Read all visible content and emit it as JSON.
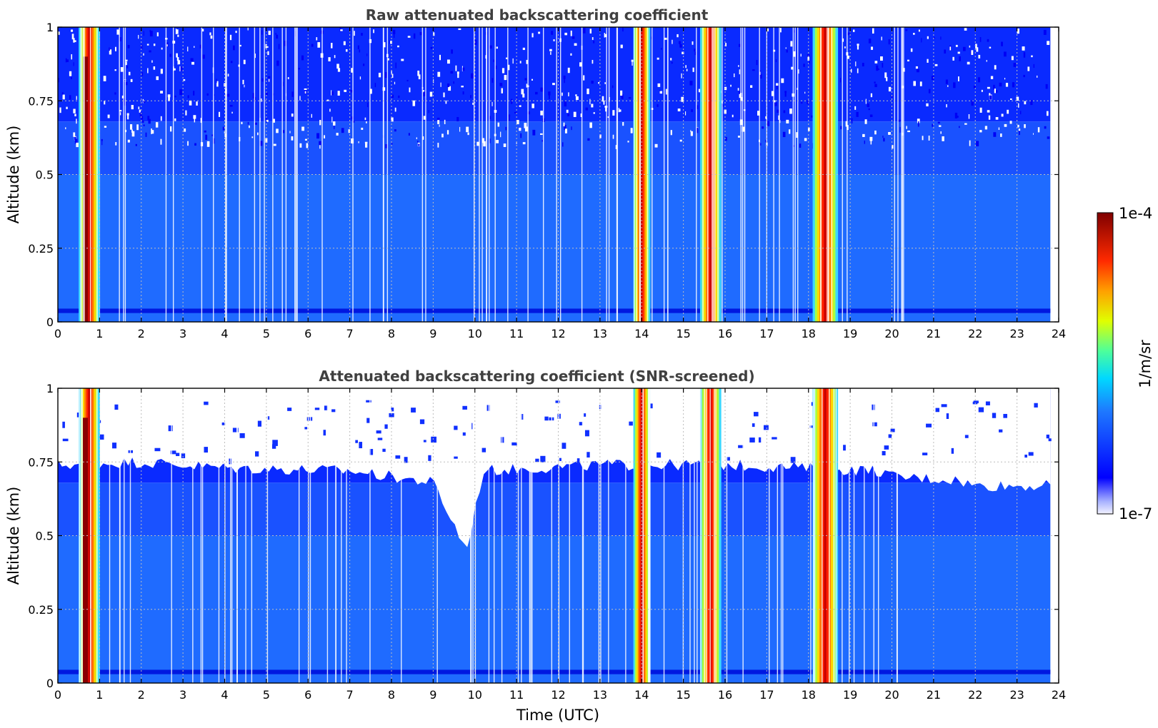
{
  "figure": {
    "colorbar": {
      "label": "1/m/sr",
      "max_label": "1e-4",
      "min_label": "1e-7",
      "colormap": "jet",
      "scale": "log"
    },
    "xlabel": "Time (UTC)"
  },
  "chart_data": [
    {
      "type": "heatmap",
      "title": "Raw attenuated backscattering coefficient",
      "xlabel": "",
      "ylabel": "Altitude (km)",
      "xlim": [
        0,
        24
      ],
      "ylim": [
        0,
        1
      ],
      "x_ticks": [
        "0",
        "1",
        "2",
        "3",
        "4",
        "5",
        "6",
        "7",
        "8",
        "9",
        "10",
        "11",
        "12",
        "13",
        "14",
        "15",
        "16",
        "17",
        "18",
        "19",
        "20",
        "21",
        "22",
        "23",
        "24"
      ],
      "y_ticks": [
        "0",
        "0.25",
        "0.5",
        "0.75",
        "1"
      ],
      "grid": true,
      "value_range": [
        "1e-7",
        "1e-4"
      ],
      "high_signal_time_bands": [
        {
          "start": 0.5,
          "end": 1.0
        },
        {
          "start": 13.8,
          "end": 14.2
        },
        {
          "start": 15.4,
          "end": 15.9
        },
        {
          "start": 18.1,
          "end": 18.7
        }
      ],
      "data_end_time": 23.8
    },
    {
      "type": "heatmap",
      "title": "Attenuated backscattering coefficient (SNR-screened)",
      "xlabel": "Time (UTC)",
      "ylabel": "Altitude (km)",
      "xlim": [
        0,
        24
      ],
      "ylim": [
        0,
        1
      ],
      "x_ticks": [
        "0",
        "1",
        "2",
        "3",
        "4",
        "5",
        "6",
        "7",
        "8",
        "9",
        "10",
        "11",
        "12",
        "13",
        "14",
        "15",
        "16",
        "17",
        "18",
        "19",
        "20",
        "21",
        "22",
        "23",
        "24"
      ],
      "y_ticks": [
        "0",
        "0.25",
        "0.5",
        "0.75",
        "1"
      ],
      "grid": true,
      "value_range": [
        "1e-7",
        "1e-4"
      ],
      "high_signal_time_bands": [
        {
          "start": 0.5,
          "end": 1.0
        },
        {
          "start": 13.8,
          "end": 14.2
        },
        {
          "start": 15.4,
          "end": 15.9
        },
        {
          "start": 18.1,
          "end": 18.7
        }
      ],
      "screened_top_altitude": [
        {
          "t": 0.0,
          "alt": 0.74
        },
        {
          "t": 2.0,
          "alt": 0.75
        },
        {
          "t": 4.0,
          "alt": 0.73
        },
        {
          "t": 7.0,
          "alt": 0.72
        },
        {
          "t": 9.0,
          "alt": 0.68
        },
        {
          "t": 9.8,
          "alt": 0.45
        },
        {
          "t": 10.2,
          "alt": 0.72
        },
        {
          "t": 13.0,
          "alt": 0.74
        },
        {
          "t": 16.0,
          "alt": 0.74
        },
        {
          "t": 19.7,
          "alt": 0.72
        },
        {
          "t": 20.0,
          "alt": 0.7
        },
        {
          "t": 21.5,
          "alt": 0.69
        },
        {
          "t": 22.0,
          "alt": 0.67
        },
        {
          "t": 23.8,
          "alt": 0.67
        }
      ],
      "data_end_time": 23.8
    }
  ]
}
